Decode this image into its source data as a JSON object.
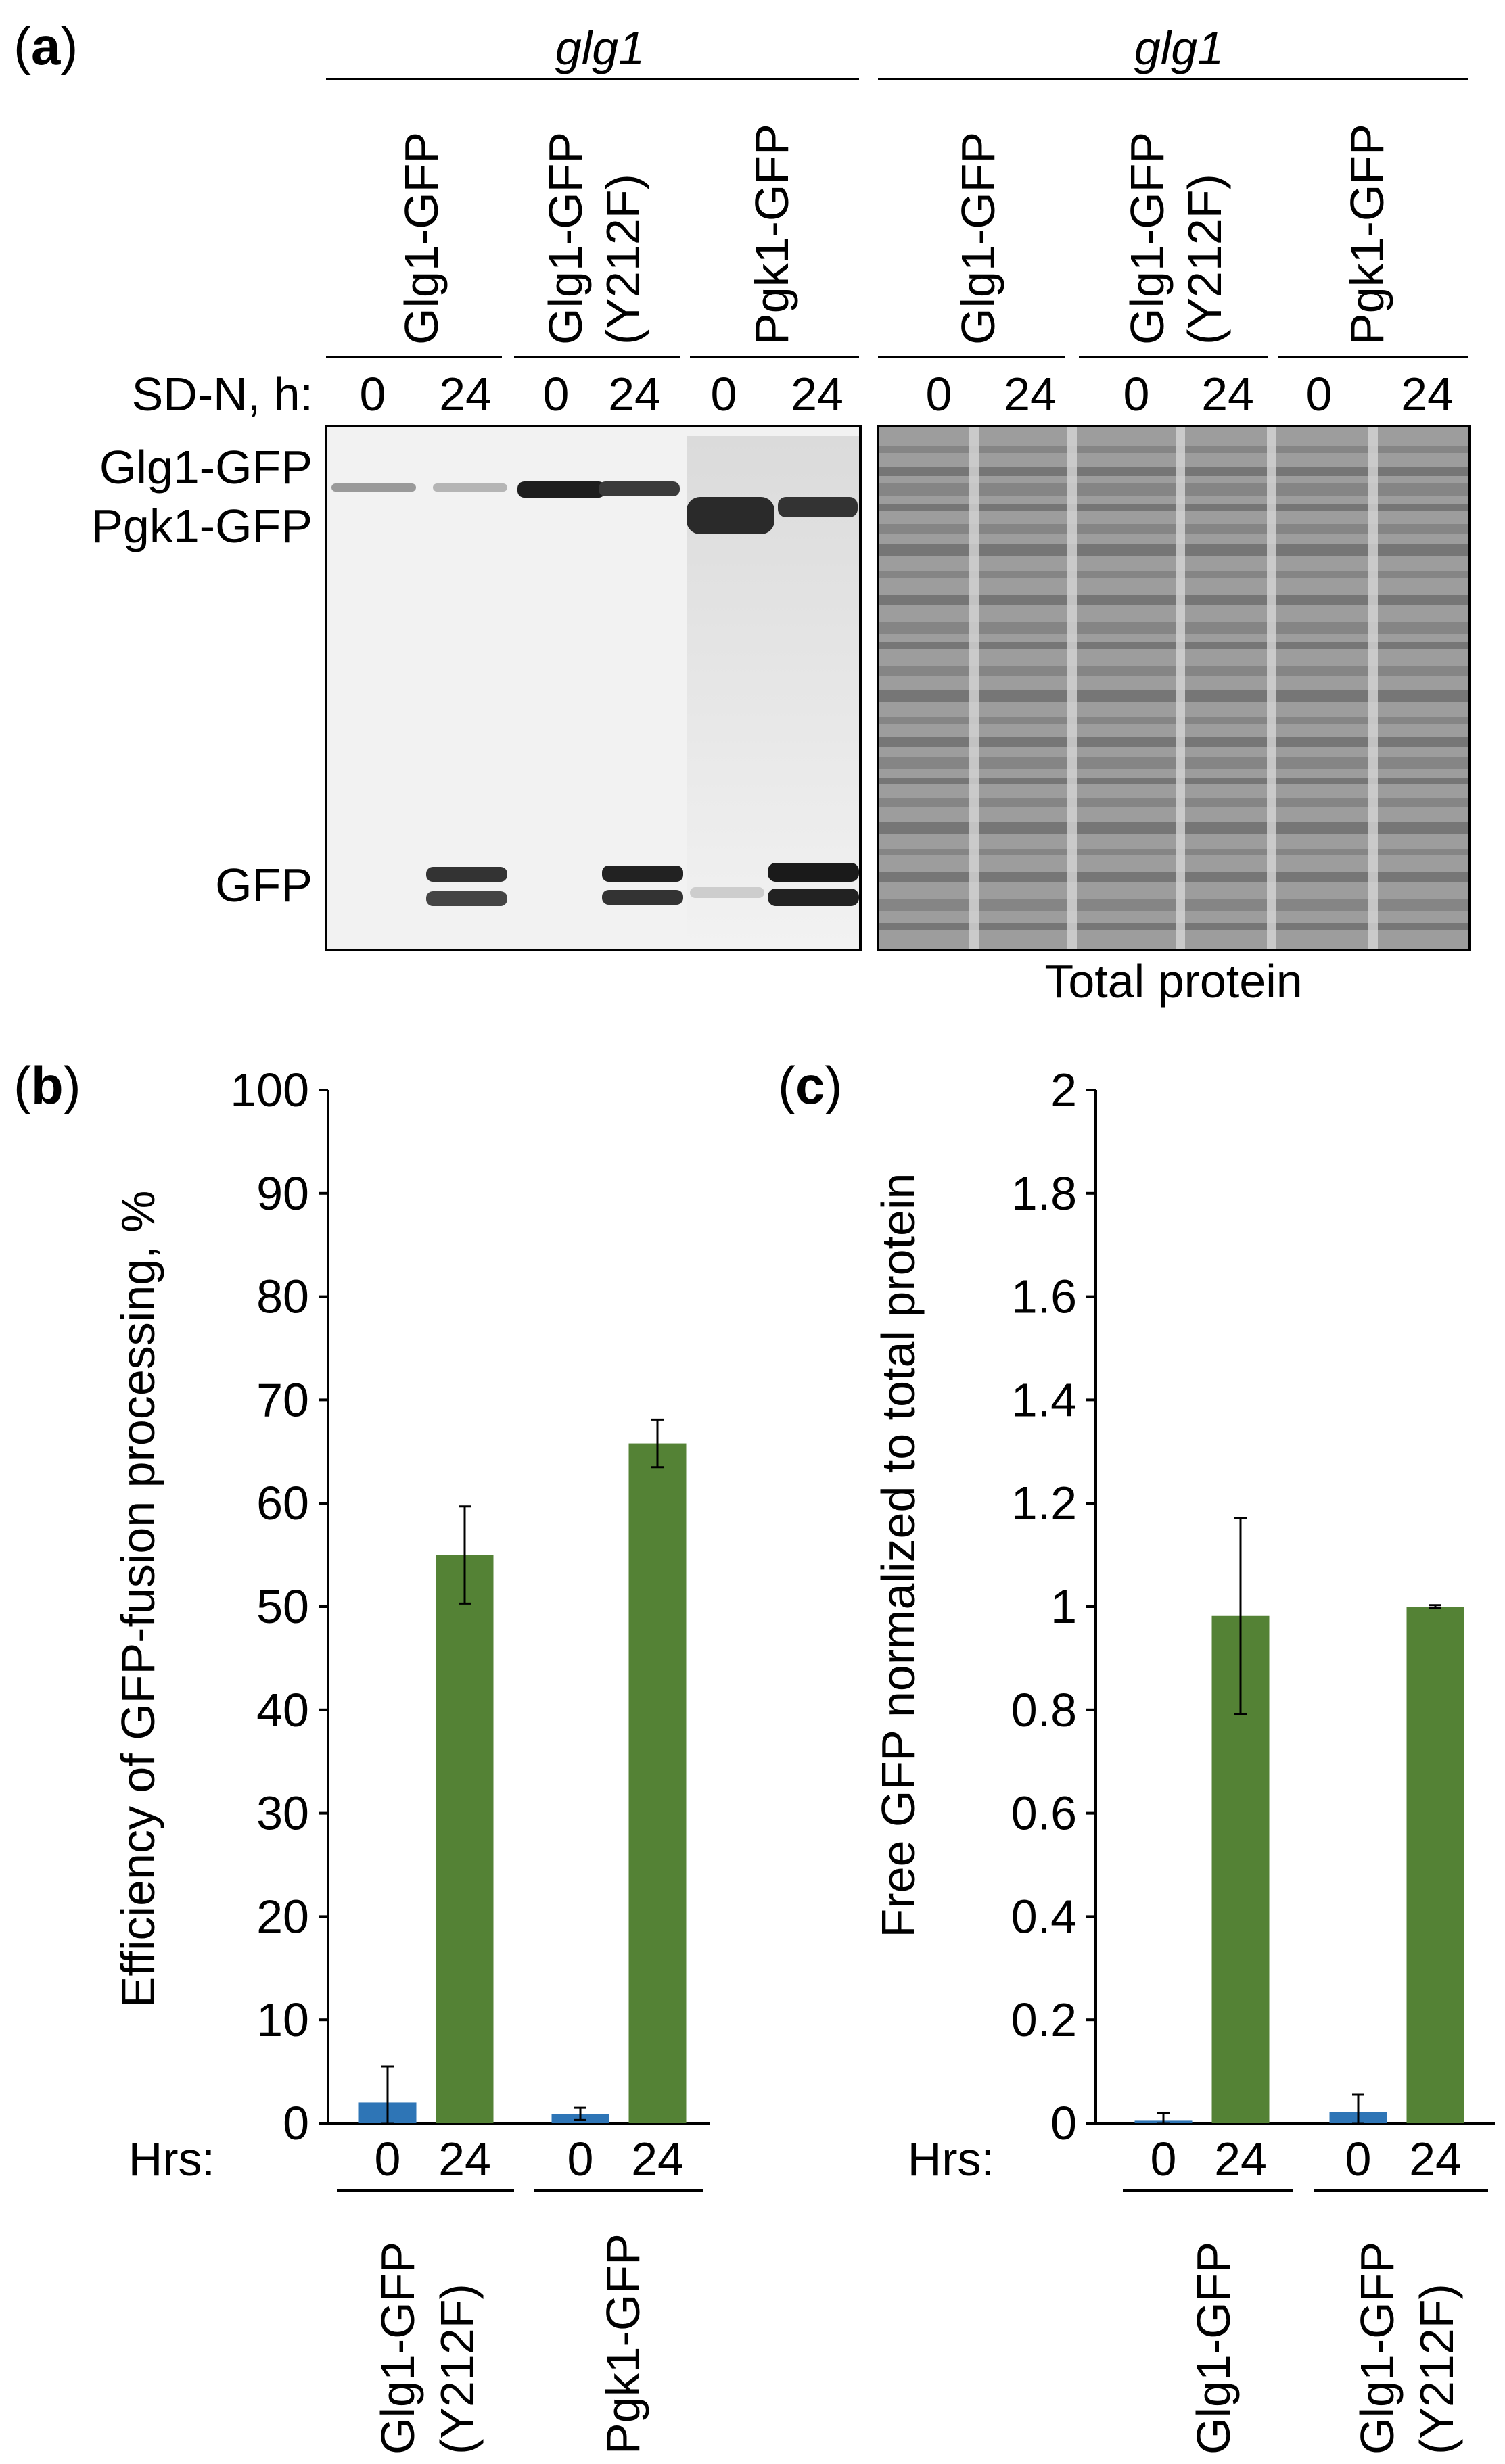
{
  "panel_a": {
    "label": "a",
    "strain_label": "glg1",
    "lane_groups": [
      {
        "line1": "Glg1-GFP",
        "line2": ""
      },
      {
        "line1": "Glg1-GFP",
        "line2": "(Y212F)"
      },
      {
        "line1": "Pgk1-GFP",
        "line2": ""
      }
    ],
    "condition_label": "SD-N, h:",
    "time_labels": [
      "0",
      "24"
    ],
    "band_labels": {
      "glg1_gfp": "Glg1-GFP",
      "pgk1_gfp": "Pgk1-GFP",
      "gfp": "GFP"
    },
    "stain_label": "Total protein"
  },
  "panel_b": {
    "label": "b",
    "hrs_label": "Hrs:"
  },
  "panel_c": {
    "label": "c",
    "hrs_label": "Hrs:"
  },
  "colors": {
    "bar_0h": "#2e75b6",
    "bar_24h": "#548235",
    "axis": "#000000"
  },
  "chart_data": [
    {
      "type": "bar",
      "panel": "b",
      "ylabel": "Efficiency of GFP-fusion processing, %",
      "ylim": [
        0,
        100
      ],
      "yticks": [
        "0",
        "10",
        "20",
        "30",
        "40",
        "50",
        "60",
        "70",
        "80",
        "90",
        "100"
      ],
      "groups": [
        {
          "line1": "Glg1-GFP",
          "line2": "(Y212F)"
        },
        {
          "line1": "Pgk1-GFP",
          "line2": ""
        }
      ],
      "time_labels": [
        "0",
        "24"
      ],
      "series": [
        {
          "values": [
            2.0,
            0.9
          ],
          "errors": [
            3.5,
            0.6
          ]
        },
        {
          "values": [
            55.0,
            65.8
          ],
          "errors": [
            4.7,
            2.3
          ]
        }
      ]
    },
    {
      "type": "bar",
      "panel": "c",
      "ylabel": "Free GFP normalized to total protein",
      "ylim": [
        0,
        2
      ],
      "yticks": [
        "0",
        "0.2",
        "0.4",
        "0.6",
        "0.8",
        "1",
        "1.2",
        "1.4",
        "1.6",
        "1.8",
        "2"
      ],
      "groups": [
        {
          "line1": "Glg1-GFP",
          "line2": ""
        },
        {
          "line1": "Glg1-GFP",
          "line2": "(Y212F)"
        }
      ],
      "time_labels": [
        "0",
        "24"
      ],
      "series": [
        {
          "values": [
            0.006,
            0.022
          ],
          "errors": [
            0.014,
            0.033
          ]
        },
        {
          "values": [
            0.982,
            1.0
          ],
          "errors": [
            0.19,
            0.003
          ]
        }
      ]
    }
  ]
}
